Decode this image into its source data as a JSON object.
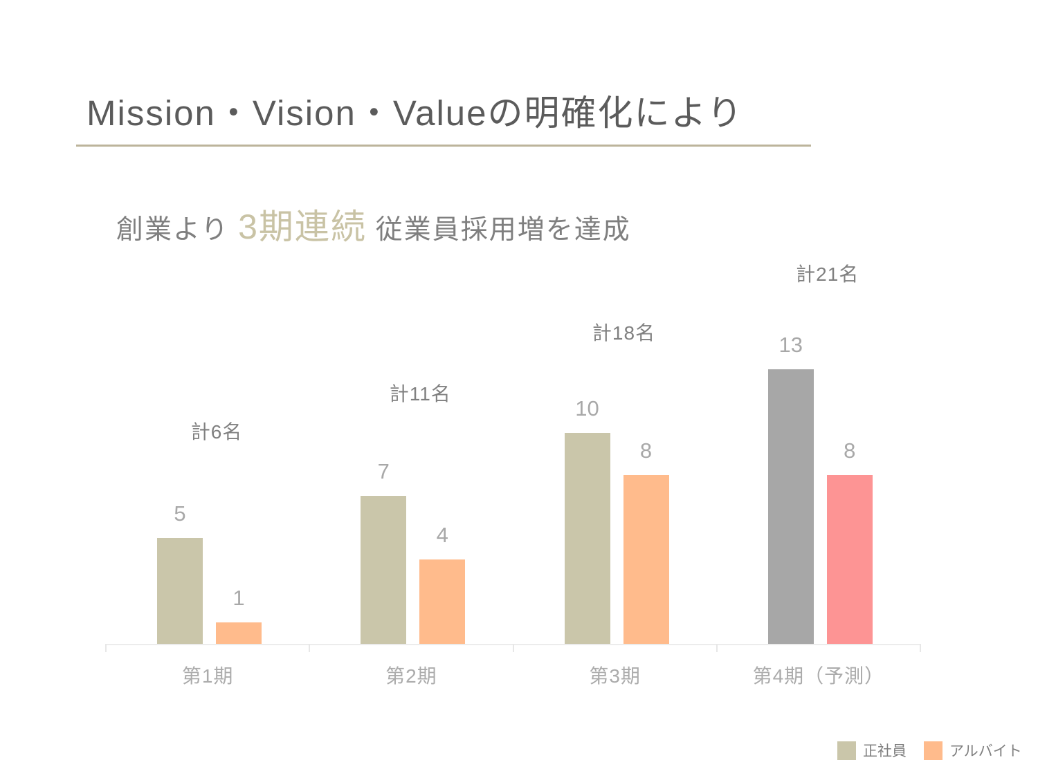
{
  "slide": {
    "title": "Mission・Vision・Valueの明確化により",
    "subtitle_prefix": "創業より ",
    "subtitle_highlight": "3期連続",
    "subtitle_suffix": " 従業員採用増を達成"
  },
  "chart_data": {
    "type": "bar",
    "categories": [
      "第1期",
      "第2期",
      "第3期",
      "第4期（予測）"
    ],
    "series": [
      {
        "name": "正社員",
        "values": [
          5,
          7,
          10,
          13
        ],
        "colors": [
          "#cac6aa",
          "#cac6aa",
          "#cac6aa",
          "#a7a7a7"
        ]
      },
      {
        "name": "アルバイト",
        "values": [
          1,
          4,
          8,
          8
        ],
        "colors": [
          "#ffbb8c",
          "#ffbb8c",
          "#ffbb8c",
          "#fd9494"
        ]
      }
    ],
    "total_labels": [
      "計6名",
      "計11名",
      "計18名",
      "計21名"
    ],
    "ylim": [
      0,
      13
    ],
    "grid": false,
    "legend_position": "bottom-right",
    "legend": [
      {
        "label": "正社員",
        "color": "#cac6aa"
      },
      {
        "label": "アルバイト",
        "color": "#ffbb8c"
      }
    ]
  },
  "colors": {
    "title_text": "#5b5b5b",
    "accent_rule": "#bcb49b",
    "subtitle_text": "#7f7f7f",
    "highlight_text": "#c9c3a5",
    "value_label": "#a8a8a8",
    "total_label": "#808080",
    "category_label": "#ababab",
    "axis_line": "#ececec"
  }
}
